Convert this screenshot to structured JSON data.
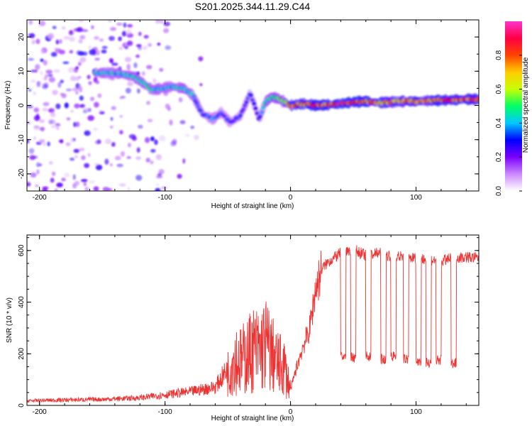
{
  "figure_title": "S201.2025.344.11.29.C44",
  "chart_data": [
    {
      "type": "heatmap",
      "title": "S201.2025.344.11.29.C44",
      "xlabel": "Height of straight line (km)",
      "ylabel": "Frequency (Hz)",
      "xlim": [
        -210,
        150
      ],
      "ylim": [
        -25,
        25
      ],
      "xticks": [
        -200,
        -100,
        0,
        100
      ],
      "yticks": [
        -20,
        -10,
        0,
        10,
        20
      ],
      "colorbar": {
        "label": "Normalized spectral amplitude",
        "range": [
          0,
          1
        ],
        "ticks": [
          0.0,
          0.2,
          0.4,
          0.6,
          0.8
        ],
        "colormap": [
          "#ffffff",
          "#cc88ff",
          "#7a00ff",
          "#0000ff",
          "#00c8ff",
          "#00ff66",
          "#c8ff00",
          "#ffcc00",
          "#ff4400",
          "#ff0044",
          "#ff33cc"
        ]
      },
      "ridge": {
        "x": [
          -155,
          -140,
          -125,
          -110,
          -95,
          -85,
          -78,
          -70,
          -62,
          -55,
          -48,
          -40,
          -32,
          -25,
          -20,
          -15,
          -10,
          -5,
          0,
          10,
          20,
          30,
          40,
          50,
          60,
          70,
          80,
          90,
          100,
          110,
          120,
          130,
          140,
          150
        ],
        "y": [
          9.5,
          9.5,
          8.5,
          4.5,
          5.5,
          5.0,
          3.0,
          -2.5,
          -4.0,
          -2.0,
          -5.0,
          -3.0,
          3.5,
          -4.0,
          1.0,
          2.5,
          2.0,
          1.0,
          0.0,
          0.5,
          0.0,
          0.2,
          0.5,
          1.0,
          1.2,
          0.8,
          1.0,
          1.2,
          1.2,
          1.4,
          1.5,
          1.6,
          1.8,
          1.8
        ],
        "amplitude": [
          0.45,
          0.4,
          0.45,
          0.45,
          0.4,
          0.45,
          0.4,
          0.3,
          0.35,
          0.3,
          0.3,
          0.3,
          0.3,
          0.3,
          0.45,
          0.5,
          0.5,
          0.55,
          0.8,
          0.75,
          0.85,
          0.8,
          0.9,
          0.85,
          0.8,
          0.75,
          0.7,
          0.7,
          0.75,
          0.7,
          0.85,
          0.8,
          0.8,
          0.75
        ]
      },
      "background_noise": {
        "x_range": [
          -210,
          -60
        ],
        "y_range": [
          -25,
          25
        ],
        "amplitude": 0.15
      }
    },
    {
      "type": "line",
      "xlabel": "Height of straight line (km)",
      "ylabel": "SNR (10 * v/v)",
      "xlim": [
        -210,
        150
      ],
      "ylim": [
        0,
        660
      ],
      "xticks": [
        -200,
        -100,
        0,
        100
      ],
      "yticks": [
        0,
        200,
        400,
        600
      ],
      "color": "#ee3333",
      "series": [
        {
          "name": "SNR",
          "x": [
            -210,
            -180,
            -150,
            -120,
            -100,
            -80,
            -60,
            -50,
            -45,
            -40,
            -35,
            -30,
            -25,
            -20,
            -15,
            -10,
            -5,
            0,
            5,
            10,
            15,
            20,
            25,
            30,
            40,
            50,
            60,
            70,
            80,
            90,
            100,
            110,
            120,
            130,
            140,
            150
          ],
          "values": [
            15,
            18,
            20,
            25,
            35,
            45,
            60,
            120,
            190,
            170,
            190,
            220,
            210,
            240,
            200,
            160,
            150,
            60,
            150,
            230,
            290,
            450,
            530,
            555,
            590,
            605,
            580,
            590,
            580,
            575,
            570,
            565,
            560,
            570,
            575,
            570
          ],
          "dropouts": [
            {
              "x_start": 40,
              "x_end": 44,
              "value": 190
            },
            {
              "x_start": 48,
              "x_end": 52,
              "value": 185
            },
            {
              "x_start": 60,
              "x_end": 64,
              "value": 190
            },
            {
              "x_start": 72,
              "x_end": 76,
              "value": 180
            },
            {
              "x_start": 80,
              "x_end": 84,
              "value": 190
            },
            {
              "x_start": 90,
              "x_end": 94,
              "value": 180
            },
            {
              "x_start": 100,
              "x_end": 104,
              "value": 170
            },
            {
              "x_start": 108,
              "x_end": 112,
              "value": 165
            },
            {
              "x_start": 116,
              "x_end": 120,
              "value": 175
            },
            {
              "x_start": 128,
              "x_end": 132,
              "value": 165
            }
          ]
        }
      ]
    }
  ]
}
